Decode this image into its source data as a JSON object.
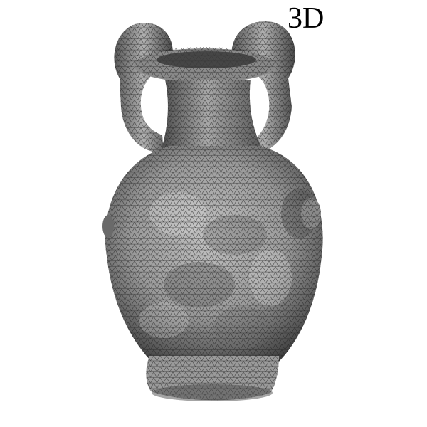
{
  "label": "3D",
  "colors": {
    "background": "#ffffff",
    "mesh_light": "#b9b9b9",
    "mesh_mid": "#8c8c8c",
    "mesh_dark": "#3e3e3e",
    "wire": "#1e1e1e",
    "label": "#000000"
  }
}
